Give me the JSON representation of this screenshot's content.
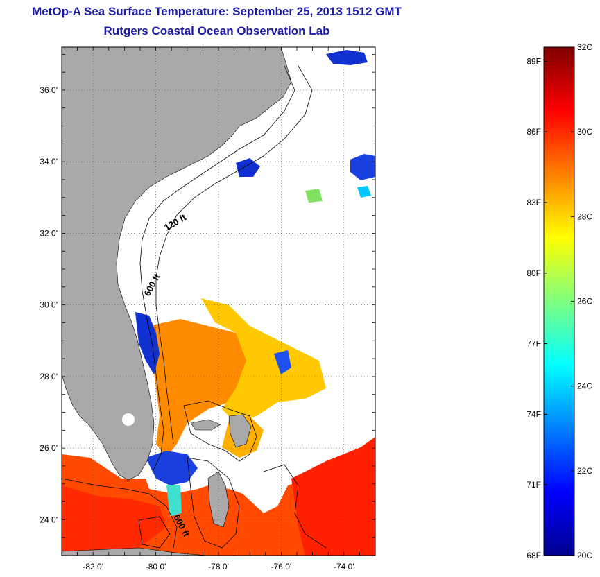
{
  "title": "MetOp-A Sea Surface Temperature:  September 25, 2013 1512 GMT",
  "subtitle": "Rutgers Coastal Ocean Observation Lab",
  "map": {
    "lon_ticks": [
      "-82 0'",
      "-80 0'",
      "-78 0'",
      "-76 0'",
      "-74 0'"
    ],
    "lat_ticks": [
      "36 0'",
      "34 0'",
      "32 0'",
      "30 0'",
      "28 0'",
      "26 0'",
      "24 0'"
    ],
    "lon_range": [
      -83,
      -73
    ],
    "lat_range": [
      23,
      37.2
    ],
    "contour_labels": [
      "120 ft",
      "600 ft",
      "600 ft"
    ],
    "land_color": "#a9a9a9",
    "no_data_color": "#ffffff"
  },
  "colorbar": {
    "fahrenheit_labels": [
      "89F",
      "86F",
      "83F",
      "80F",
      "77F",
      "74F",
      "71F",
      "68F"
    ],
    "celsius_labels": [
      "32C",
      "30C",
      "28C",
      "26C",
      "24C",
      "22C",
      "20C"
    ],
    "range_c": [
      20,
      32
    ],
    "colors": [
      "#00008f",
      "#0000ff",
      "#0080ff",
      "#00ffff",
      "#80ff80",
      "#ffff00",
      "#ff8000",
      "#ff0000",
      "#800000"
    ]
  }
}
